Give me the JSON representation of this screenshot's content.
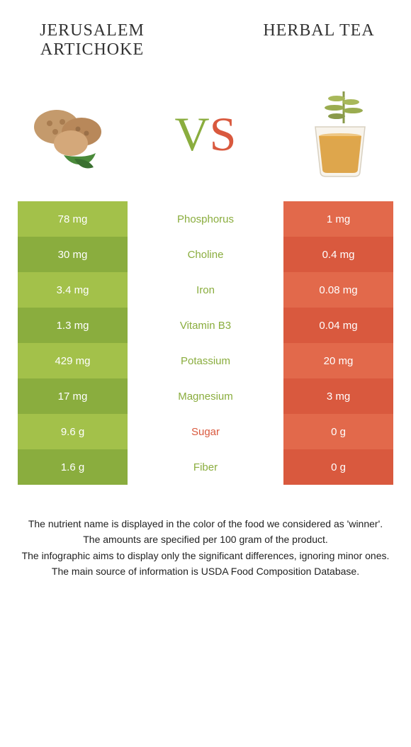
{
  "header": {
    "left_title": "Jerusalem artichoke",
    "right_title": "Herbal tea"
  },
  "vs": {
    "v": "V",
    "s": "S"
  },
  "colors": {
    "green_dark": "#8aad3e",
    "green_light": "#a3c14a",
    "orange_dark": "#d9593e",
    "orange_light": "#e2694b",
    "text_dark": "#333333"
  },
  "table": {
    "rows": [
      {
        "left": "78 mg",
        "label": "Phosphorus",
        "right": "1 mg",
        "winner": "green"
      },
      {
        "left": "30 mg",
        "label": "Choline",
        "right": "0.4 mg",
        "winner": "green"
      },
      {
        "left": "3.4 mg",
        "label": "Iron",
        "right": "0.08 mg",
        "winner": "green"
      },
      {
        "left": "1.3 mg",
        "label": "Vitamin B3",
        "right": "0.04 mg",
        "winner": "green"
      },
      {
        "left": "429 mg",
        "label": "Potassium",
        "right": "20 mg",
        "winner": "green"
      },
      {
        "left": "17 mg",
        "label": "Magnesium",
        "right": "3 mg",
        "winner": "green"
      },
      {
        "left": "9.6 g",
        "label": "Sugar",
        "right": "0 g",
        "winner": "orange"
      },
      {
        "left": "1.6 g",
        "label": "Fiber",
        "right": "0 g",
        "winner": "green"
      }
    ]
  },
  "footer": {
    "line1": "The nutrient name is displayed in the color of the food we considered as 'winner'.",
    "line2": "The amounts are specified per 100 gram of the product.",
    "line3": "The infographic aims to display only the significant differences, ignoring minor ones.",
    "line4": "The main source of information is USDA Food Composition Database."
  }
}
